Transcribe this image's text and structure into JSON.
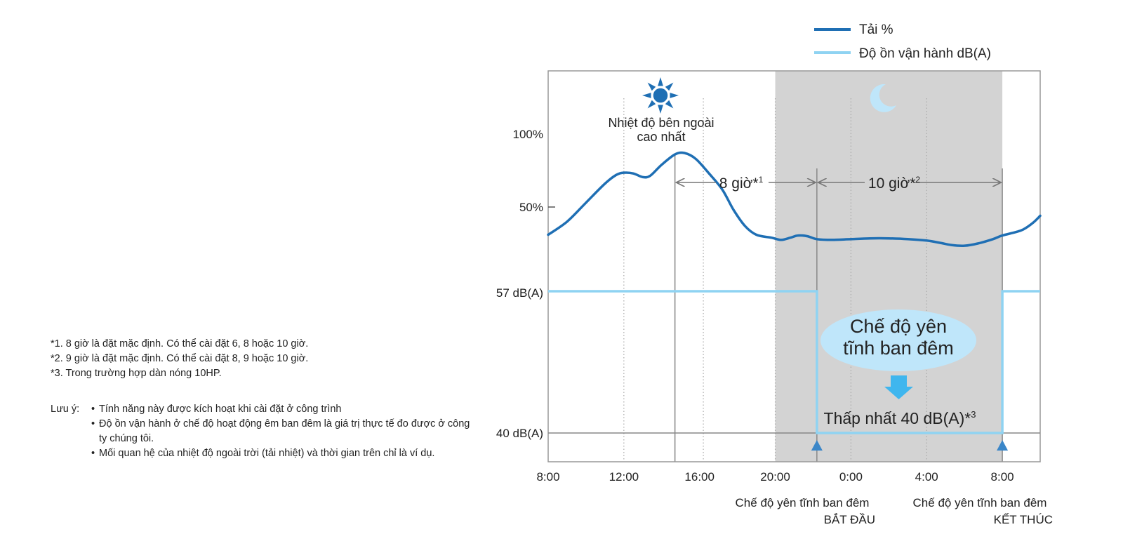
{
  "notes": {
    "footnotes": [
      "*1. 8 giờ là đặt mặc định. Có thể cài đặt 6, 8 hoặc 10 giờ.",
      "*2. 9 giờ là đặt mặc định. Có thể cài đặt 8, 9 hoặc 10 giờ.",
      "*3. Trong trường hợp dàn nóng 10HP."
    ],
    "note_label": "Lưu ý:",
    "note_items": [
      "Tính năng này được kích hoạt khi cài đặt ở công trình",
      "Độ ồn vận hành ở chế độ hoạt động êm ban đêm là giá trị thực tế đo được ở công ty chúng tôi.",
      "Mối quan hệ của nhiệt độ ngoài trời (tải nhiệt) và thời gian trên chỉ là ví dụ."
    ]
  },
  "colors": {
    "load": "#1f6fb4",
    "noise": "#8fd3f2",
    "night_shade": "#d3d3d3",
    "bubble": "#bfe6fa",
    "arrow_blue": "#3fb6ee",
    "marker": "#3a86c8",
    "sun": "#1f6fb4",
    "moon": "#bfe6fa"
  },
  "chart_data": {
    "type": "line",
    "x_unit": "hours since 8:00",
    "xlim": [
      0,
      26
    ],
    "x_ticks": [
      {
        "x": 0,
        "label": "8:00"
      },
      {
        "x": 4,
        "label": "12:00"
      },
      {
        "x": 8,
        "label": "16:00"
      },
      {
        "x": 12,
        "label": "20:00"
      },
      {
        "x": 16,
        "label": "0:00"
      },
      {
        "x": 20,
        "label": "4:00"
      },
      {
        "x": 24,
        "label": "8:00"
      }
    ],
    "load_axis": {
      "ticks": [
        {
          "value": 100,
          "label": "100%"
        },
        {
          "value": 50,
          "label": "50%"
        }
      ]
    },
    "noise_axis": {
      "ticks": [
        {
          "value": 57,
          "label": "57 dB(A)"
        },
        {
          "value": 40,
          "label": "40 dB(A)"
        }
      ]
    },
    "legend": {
      "position": "top-right",
      "entries": [
        "Tải %",
        "Độ ồn vận hành dB(A)"
      ]
    },
    "series": [
      {
        "name": "Tải %",
        "unit": "%",
        "points": [
          [
            0,
            31
          ],
          [
            1,
            40
          ],
          [
            2,
            53
          ],
          [
            3,
            66
          ],
          [
            3.6,
            72
          ],
          [
            4,
            73.5
          ],
          [
            4.5,
            73
          ],
          [
            5,
            70.5
          ],
          [
            5.4,
            71.5
          ],
          [
            6,
            79
          ],
          [
            6.7,
            86
          ],
          [
            7.2,
            87
          ],
          [
            7.8,
            83
          ],
          [
            8.5,
            73
          ],
          [
            9.2,
            62
          ],
          [
            9.8,
            48
          ],
          [
            10.4,
            37
          ],
          [
            11,
            31
          ],
          [
            11.8,
            29
          ],
          [
            12.3,
            27.5
          ],
          [
            12.8,
            29
          ],
          [
            13.2,
            30.5
          ],
          [
            13.7,
            30
          ],
          [
            14.2,
            28
          ],
          [
            15,
            27.5
          ],
          [
            16,
            28
          ],
          [
            17,
            28.5
          ],
          [
            18,
            28.5
          ],
          [
            19,
            28
          ],
          [
            20,
            27
          ],
          [
            20.7,
            25.5
          ],
          [
            21.3,
            24
          ],
          [
            22,
            23.5
          ],
          [
            22.7,
            25
          ],
          [
            23.5,
            28
          ],
          [
            24,
            30.5
          ],
          [
            25,
            34
          ],
          [
            25.6,
            39
          ],
          [
            26,
            44
          ]
        ]
      },
      {
        "name": "Độ ồn vận hành dB(A)",
        "unit": "dB(A)",
        "points": [
          [
            0,
            57
          ],
          [
            14.2,
            57
          ],
          [
            14.2,
            40
          ],
          [
            24,
            40
          ],
          [
            24,
            57
          ],
          [
            26,
            57
          ]
        ]
      }
    ],
    "night_mode_shade": {
      "from": 12,
      "to": 24
    },
    "vertical_markers": [
      6.7,
      14.2,
      24
    ],
    "dotted_gridlines": [
      4,
      8.2,
      12,
      16,
      20
    ],
    "annotations": {
      "peak_label": [
        "Nhiệt độ bên ngoài",
        "cao nhất"
      ],
      "duration_1": {
        "label": "8 giờ*",
        "sup": "1",
        "from": 6.7,
        "to": 14.2
      },
      "duration_2": {
        "label": "10 giờ*",
        "sup": "2",
        "from": 14.2,
        "to": 24
      },
      "quiet_mode": [
        "Chế độ yên",
        "tĩnh ban đêm"
      ],
      "min_noise": {
        "label": "Thấp nhất 40 dB(A)*",
        "sup": "3"
      },
      "start": {
        "line1": "Chế độ yên tĩnh ban đêm",
        "line2": "BẮT ĐẦU",
        "x": 14.2
      },
      "end": {
        "line1": "Chế độ yên tĩnh ban đêm",
        "line2": "KẾT THÚC",
        "x": 24
      }
    }
  }
}
